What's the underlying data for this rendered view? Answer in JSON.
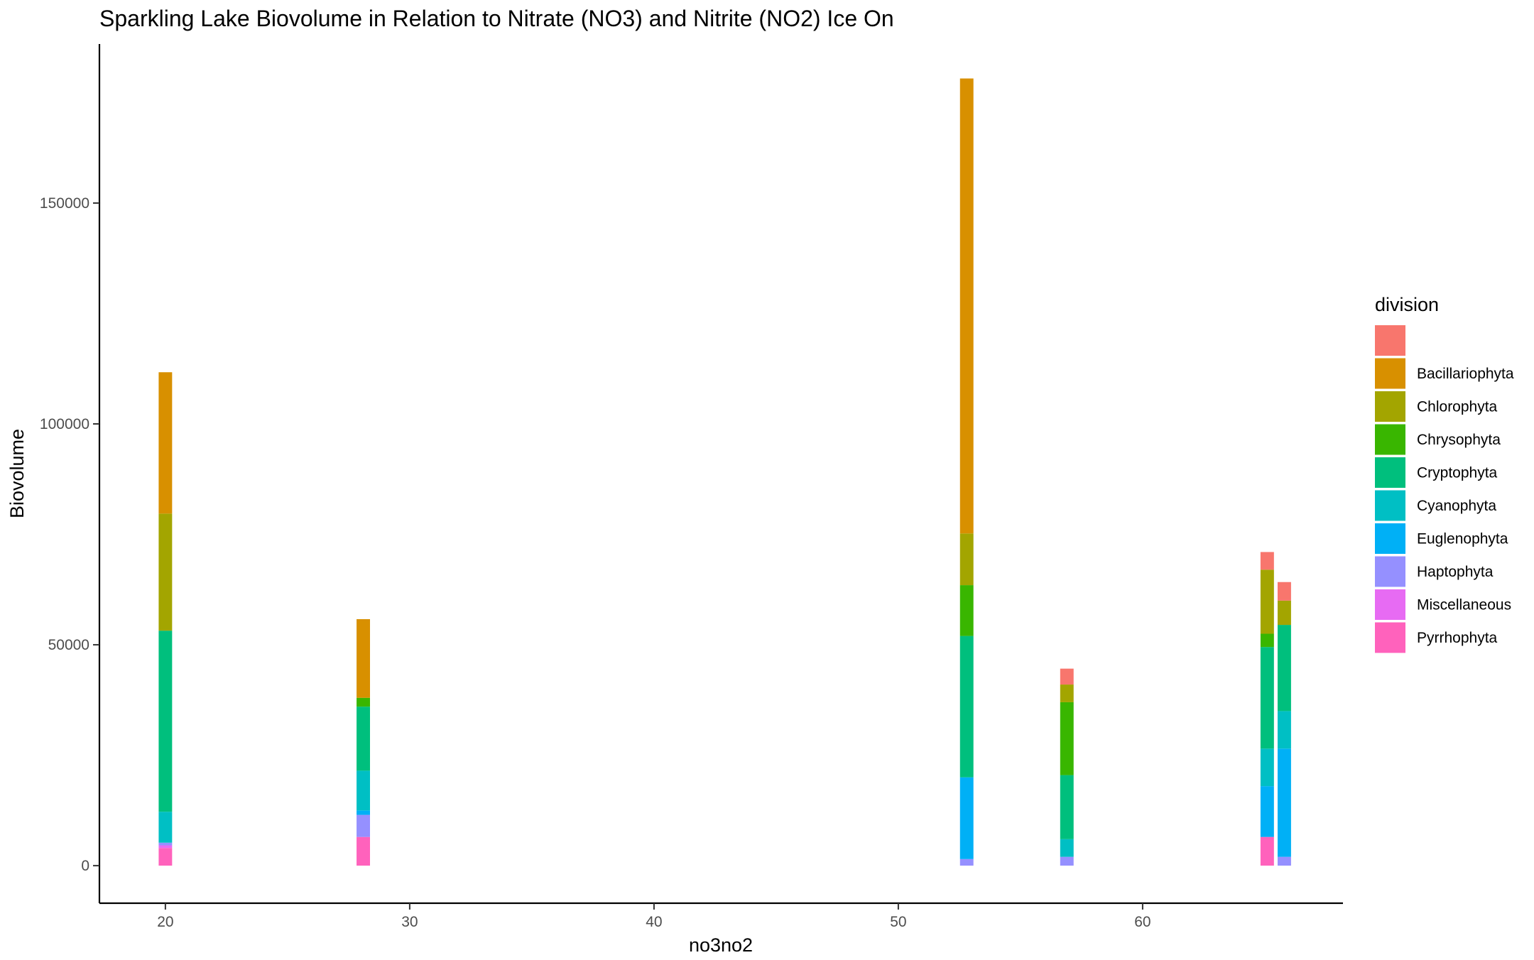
{
  "chart_data": {
    "type": "bar",
    "stacked": true,
    "title": "Sparkling Lake Biovolume in Relation to Nitrate (NO3) and Nitrite (NO2) Ice On",
    "xlabel": "no3no2",
    "ylabel": "Biovolume",
    "xlim": [
      17.3,
      68.2
    ],
    "ylim": [
      -8500,
      186000
    ],
    "xticks": [
      20,
      30,
      40,
      50,
      60
    ],
    "yticks": [
      0,
      50000,
      100000,
      150000
    ],
    "ytick_labels": [
      "0",
      "50000",
      "100000",
      "150000"
    ],
    "grid": false,
    "legend": {
      "title": "division",
      "position": "right",
      "entries": [
        {
          "label": "",
          "color": "#F8766D"
        },
        {
          "label": "Bacillariophyta",
          "color": "#D89000"
        },
        {
          "label": "Chlorophyta",
          "color": "#A3A500"
        },
        {
          "label": "Chrysophyta",
          "color": "#39B600"
        },
        {
          "label": "Cryptophyta",
          "color": "#00BF7D"
        },
        {
          "label": "Cyanophyta",
          "color": "#00BFC4"
        },
        {
          "label": "Euglenophyta",
          "color": "#00B0F6"
        },
        {
          "label": "Haptophyta",
          "color": "#9590FF"
        },
        {
          "label": "Miscellaneous",
          "color": "#E76BF3"
        },
        {
          "label": "Pyrrhophyta",
          "color": "#FF62BC"
        }
      ]
    },
    "bar_width": 0.55,
    "x": [
      20,
      28.1,
      52.8,
      56.9,
      65.1,
      65.8
    ],
    "stacks": [
      [
        {
          "division": "Pyrrhophyta",
          "value": 4000
        },
        {
          "division": "Miscellaneous",
          "value": 600
        },
        {
          "division": "Haptophyta",
          "value": 600
        },
        {
          "division": "Cyanophyta",
          "value": 7000
        },
        {
          "division": "Cryptophyta",
          "value": 41000
        },
        {
          "division": "Chlorophyta",
          "value": 26500
        },
        {
          "division": "Bacillariophyta",
          "value": 32000
        }
      ],
      [
        {
          "division": "Pyrrhophyta",
          "value": 6500
        },
        {
          "division": "Haptophyta",
          "value": 5000
        },
        {
          "division": "Euglenophyta",
          "value": 1000
        },
        {
          "division": "Cyanophyta",
          "value": 9000
        },
        {
          "division": "Cryptophyta",
          "value": 14500
        },
        {
          "division": "Chrysophyta",
          "value": 2000
        },
        {
          "division": "Bacillariophyta",
          "value": 17800
        }
      ],
      [
        {
          "division": "Haptophyta",
          "value": 1500
        },
        {
          "division": "Euglenophyta",
          "value": 18500
        },
        {
          "division": "Cryptophyta",
          "value": 32000
        },
        {
          "division": "Chrysophyta",
          "value": 11500
        },
        {
          "division": "Chlorophyta",
          "value": 11700
        },
        {
          "division": "Bacillariophyta",
          "value": 103000
        }
      ],
      [
        {
          "division": "Haptophyta",
          "value": 2000
        },
        {
          "division": "Cyanophyta",
          "value": 4000
        },
        {
          "division": "Cryptophyta",
          "value": 14500
        },
        {
          "division": "Chrysophyta",
          "value": 16500
        },
        {
          "division": "Chlorophyta",
          "value": 4000
        },
        {
          "division": "",
          "value": 3600
        }
      ],
      [
        {
          "division": "Pyrrhophyta",
          "value": 6500
        },
        {
          "division": "Euglenophyta",
          "value": 11500
        },
        {
          "division": "Cyanophyta",
          "value": 8500
        },
        {
          "division": "Cryptophyta",
          "value": 23000
        },
        {
          "division": "Chrysophyta",
          "value": 3000
        },
        {
          "division": "Chlorophyta",
          "value": 14500
        },
        {
          "division": "",
          "value": 4000
        }
      ],
      [
        {
          "division": "Haptophyta",
          "value": 2000
        },
        {
          "division": "Euglenophyta",
          "value": 24500
        },
        {
          "division": "Cyanophyta",
          "value": 8500
        },
        {
          "division": "Cryptophyta",
          "value": 19500
        },
        {
          "division": "Chlorophyta",
          "value": 5500
        },
        {
          "division": "",
          "value": 4200
        }
      ]
    ]
  }
}
